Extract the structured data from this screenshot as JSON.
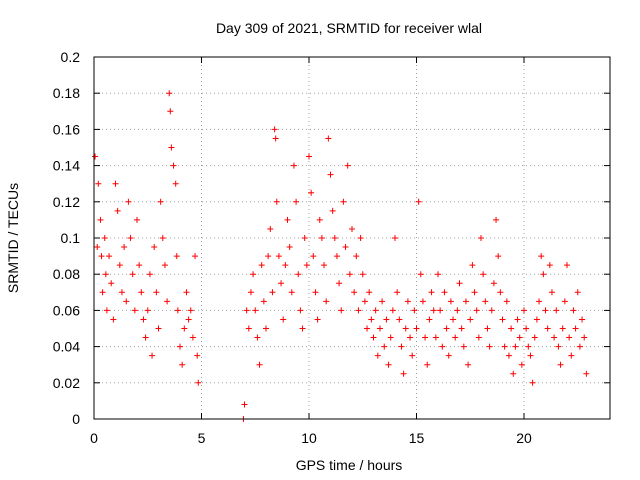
{
  "chart_data": {
    "type": "scatter",
    "title": "Day 309 of 2021, SRMTID for receiver wlal",
    "xlabel": "GPS time / hours",
    "ylabel": "SRMTID / TECUs",
    "xlim": [
      0,
      24
    ],
    "ylim": [
      0,
      0.2
    ],
    "x_ticks": [
      "0",
      "5",
      "10",
      "15",
      "20"
    ],
    "y_ticks": [
      "0",
      "0.02",
      "0.04",
      "0.06",
      "0.08",
      "0.1",
      "0.12",
      "0.14",
      "0.16",
      "0.18",
      "0.2"
    ],
    "grid": true,
    "marker": "+",
    "color": "#ff0000",
    "series": [
      {
        "points": [
          [
            0.05,
            0.145
          ],
          [
            0.15,
            0.095
          ],
          [
            0.2,
            0.13
          ],
          [
            0.3,
            0.11
          ],
          [
            0.35,
            0.09
          ],
          [
            0.4,
            0.07
          ],
          [
            0.5,
            0.1
          ],
          [
            0.55,
            0.08
          ],
          [
            0.6,
            0.06
          ],
          [
            0.7,
            0.09
          ],
          [
            0.8,
            0.075
          ],
          [
            0.9,
            0.055
          ],
          [
            1.0,
            0.13
          ],
          [
            1.1,
            0.115
          ],
          [
            1.2,
            0.085
          ],
          [
            1.3,
            0.07
          ],
          [
            1.4,
            0.095
          ],
          [
            1.5,
            0.065
          ],
          [
            1.6,
            0.12
          ],
          [
            1.7,
            0.1
          ],
          [
            1.8,
            0.08
          ],
          [
            1.9,
            0.06
          ],
          [
            2.0,
            0.11
          ],
          [
            2.1,
            0.085
          ],
          [
            2.2,
            0.07
          ],
          [
            2.3,
            0.055
          ],
          [
            2.4,
            0.045
          ],
          [
            2.5,
            0.06
          ],
          [
            2.6,
            0.08
          ],
          [
            2.7,
            0.035
          ],
          [
            2.8,
            0.095
          ],
          [
            2.9,
            0.07
          ],
          [
            3.0,
            0.05
          ],
          [
            3.1,
            0.12
          ],
          [
            3.2,
            0.1
          ],
          [
            3.3,
            0.085
          ],
          [
            3.4,
            0.065
          ],
          [
            3.5,
            0.18
          ],
          [
            3.55,
            0.17
          ],
          [
            3.6,
            0.15
          ],
          [
            3.7,
            0.14
          ],
          [
            3.8,
            0.13
          ],
          [
            3.85,
            0.09
          ],
          [
            3.9,
            0.06
          ],
          [
            4.0,
            0.04
          ],
          [
            4.1,
            0.03
          ],
          [
            4.2,
            0.05
          ],
          [
            4.3,
            0.07
          ],
          [
            4.4,
            0.055
          ],
          [
            4.5,
            0.06
          ],
          [
            4.6,
            0.045
          ],
          [
            4.7,
            0.09
          ],
          [
            4.8,
            0.035
          ],
          [
            4.85,
            0.02
          ],
          [
            6.95,
            0.0
          ],
          [
            7.0,
            0.008
          ],
          [
            7.1,
            0.06
          ],
          [
            7.2,
            0.05
          ],
          [
            7.3,
            0.07
          ],
          [
            7.4,
            0.08
          ],
          [
            7.5,
            0.06
          ],
          [
            7.6,
            0.045
          ],
          [
            7.7,
            0.03
          ],
          [
            7.8,
            0.085
          ],
          [
            7.9,
            0.065
          ],
          [
            8.0,
            0.05
          ],
          [
            8.1,
            0.09
          ],
          [
            8.2,
            0.105
          ],
          [
            8.3,
            0.07
          ],
          [
            8.4,
            0.16
          ],
          [
            8.45,
            0.155
          ],
          [
            8.5,
            0.12
          ],
          [
            8.6,
            0.09
          ],
          [
            8.7,
            0.075
          ],
          [
            8.8,
            0.055
          ],
          [
            8.9,
            0.085
          ],
          [
            9.0,
            0.11
          ],
          [
            9.1,
            0.095
          ],
          [
            9.2,
            0.07
          ],
          [
            9.3,
            0.14
          ],
          [
            9.4,
            0.12
          ],
          [
            9.5,
            0.08
          ],
          [
            9.6,
            0.06
          ],
          [
            9.7,
            0.05
          ],
          [
            9.8,
            0.1
          ],
          [
            9.9,
            0.085
          ],
          [
            10.0,
            0.145
          ],
          [
            10.1,
            0.125
          ],
          [
            10.2,
            0.09
          ],
          [
            10.3,
            0.07
          ],
          [
            10.4,
            0.055
          ],
          [
            10.5,
            0.11
          ],
          [
            10.6,
            0.1
          ],
          [
            10.7,
            0.085
          ],
          [
            10.8,
            0.065
          ],
          [
            10.9,
            0.155
          ],
          [
            11.0,
            0.135
          ],
          [
            11.1,
            0.115
          ],
          [
            11.2,
            0.1
          ],
          [
            11.3,
            0.09
          ],
          [
            11.4,
            0.075
          ],
          [
            11.5,
            0.06
          ],
          [
            11.6,
            0.12
          ],
          [
            11.7,
            0.095
          ],
          [
            11.8,
            0.14
          ],
          [
            11.9,
            0.08
          ],
          [
            12.0,
            0.105
          ],
          [
            12.1,
            0.07
          ],
          [
            12.2,
            0.09
          ],
          [
            12.3,
            0.06
          ],
          [
            12.4,
            0.1
          ],
          [
            12.5,
            0.08
          ],
          [
            12.6,
            0.065
          ],
          [
            12.7,
            0.05
          ],
          [
            12.8,
            0.07
          ],
          [
            12.9,
            0.055
          ],
          [
            13.0,
            0.045
          ],
          [
            13.1,
            0.06
          ],
          [
            13.2,
            0.035
          ],
          [
            13.3,
            0.05
          ],
          [
            13.4,
            0.065
          ],
          [
            13.5,
            0.04
          ],
          [
            13.6,
            0.055
          ],
          [
            13.7,
            0.03
          ],
          [
            13.8,
            0.045
          ],
          [
            13.9,
            0.06
          ],
          [
            14.0,
            0.1
          ],
          [
            14.1,
            0.07
          ],
          [
            14.2,
            0.055
          ],
          [
            14.3,
            0.04
          ],
          [
            14.4,
            0.025
          ],
          [
            14.5,
            0.05
          ],
          [
            14.6,
            0.065
          ],
          [
            14.7,
            0.045
          ],
          [
            14.8,
            0.035
          ],
          [
            14.9,
            0.06
          ],
          [
            15.0,
            0.05
          ],
          [
            15.1,
            0.12
          ],
          [
            15.2,
            0.08
          ],
          [
            15.3,
            0.065
          ],
          [
            15.4,
            0.045
          ],
          [
            15.5,
            0.03
          ],
          [
            15.6,
            0.055
          ],
          [
            15.7,
            0.07
          ],
          [
            15.8,
            0.06
          ],
          [
            15.9,
            0.045
          ],
          [
            16.0,
            0.08
          ],
          [
            16.1,
            0.06
          ],
          [
            16.2,
            0.04
          ],
          [
            16.3,
            0.07
          ],
          [
            16.4,
            0.05
          ],
          [
            16.5,
            0.035
          ],
          [
            16.6,
            0.065
          ],
          [
            16.7,
            0.055
          ],
          [
            16.8,
            0.045
          ],
          [
            16.9,
            0.06
          ],
          [
            17.0,
            0.075
          ],
          [
            17.1,
            0.05
          ],
          [
            17.2,
            0.04
          ],
          [
            17.3,
            0.065
          ],
          [
            17.4,
            0.03
          ],
          [
            17.5,
            0.055
          ],
          [
            17.6,
            0.085
          ],
          [
            17.7,
            0.07
          ],
          [
            17.8,
            0.06
          ],
          [
            17.9,
            0.045
          ],
          [
            18.0,
            0.1
          ],
          [
            18.1,
            0.08
          ],
          [
            18.2,
            0.065
          ],
          [
            18.3,
            0.05
          ],
          [
            18.4,
            0.04
          ],
          [
            18.5,
            0.06
          ],
          [
            18.6,
            0.075
          ],
          [
            18.7,
            0.11
          ],
          [
            18.8,
            0.09
          ],
          [
            18.9,
            0.07
          ],
          [
            19.0,
            0.055
          ],
          [
            19.1,
            0.04
          ],
          [
            19.2,
            0.065
          ],
          [
            19.3,
            0.035
          ],
          [
            19.4,
            0.05
          ],
          [
            19.5,
            0.025
          ],
          [
            19.6,
            0.04
          ],
          [
            19.7,
            0.055
          ],
          [
            19.8,
            0.045
          ],
          [
            19.9,
            0.03
          ],
          [
            20.0,
            0.06
          ],
          [
            20.1,
            0.05
          ],
          [
            20.2,
            0.04
          ],
          [
            20.3,
            0.035
          ],
          [
            20.4,
            0.02
          ],
          [
            20.5,
            0.045
          ],
          [
            20.6,
            0.055
          ],
          [
            20.7,
            0.065
          ],
          [
            20.8,
            0.09
          ],
          [
            20.9,
            0.08
          ],
          [
            21.0,
            0.06
          ],
          [
            21.1,
            0.05
          ],
          [
            21.2,
            0.085
          ],
          [
            21.3,
            0.07
          ],
          [
            21.4,
            0.045
          ],
          [
            21.5,
            0.06
          ],
          [
            21.6,
            0.04
          ],
          [
            21.7,
            0.03
          ],
          [
            21.8,
            0.05
          ],
          [
            21.9,
            0.065
          ],
          [
            22.0,
            0.085
          ],
          [
            22.1,
            0.045
          ],
          [
            22.2,
            0.035
          ],
          [
            22.3,
            0.06
          ],
          [
            22.4,
            0.05
          ],
          [
            22.5,
            0.07
          ],
          [
            22.6,
            0.04
          ],
          [
            22.7,
            0.055
          ],
          [
            22.8,
            0.045
          ],
          [
            22.9,
            0.025
          ]
        ]
      }
    ]
  }
}
